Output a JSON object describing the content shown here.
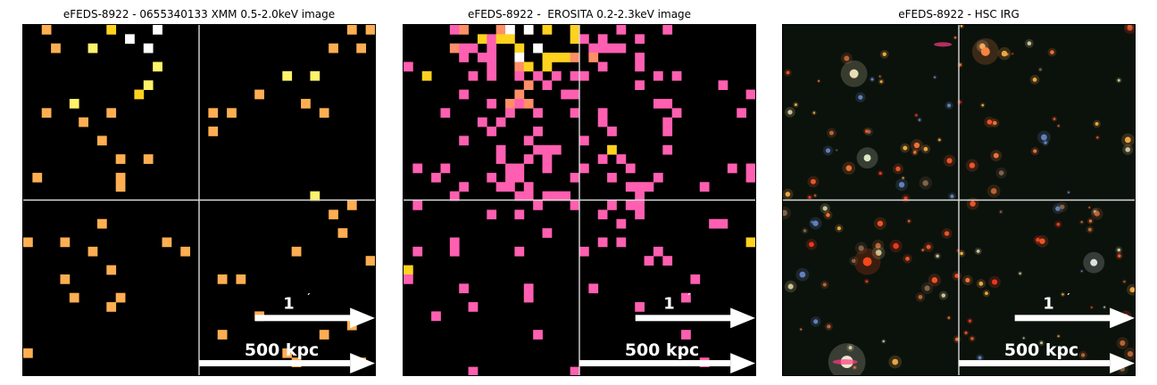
{
  "panels": [
    {
      "title": "eFEDS-8922 - 0655340133 XMM 0.5-2.0keV image",
      "kind": "xray",
      "palette": {
        "bg": "#000000",
        "low": "#ffae52",
        "mid": "#ffd21e",
        "high": "#fff36b",
        "peak": "#ffffff"
      },
      "scalebars": {
        "angular": "1",
        "angular_unit": "′",
        "physical": "500 kpc"
      },
      "crosshair_color": "#d9d9d9"
    },
    {
      "title": "eFEDS-8922 -  EROSITA 0.2-2.3keV image",
      "kind": "xray",
      "palette": {
        "bg": "#000000",
        "low": "#ff5fb0",
        "mid": "#ff8f66",
        "high": "#ffd21e",
        "peak": "#ffffff"
      },
      "scalebars": {
        "angular": "1",
        "angular_unit": "′",
        "physical": "500 kpc"
      },
      "crosshair_color": "#d9d9d9"
    },
    {
      "title": "eFEDS-8922 - HSC IRG",
      "kind": "optical",
      "palette": {
        "bg": "#0b120c"
      },
      "scalebars": {
        "angular": "1",
        "angular_unit": "′",
        "physical": "500 kpc"
      },
      "crosshair_color": "#d9d9d9"
    }
  ]
}
